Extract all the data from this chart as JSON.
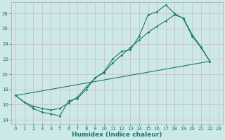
{
  "bg_color": "#cce8e8",
  "grid_color": "#d4b8b8",
  "line_color": "#1a7a6a",
  "xlabel": "Humidex (Indice chaleur)",
  "xlim": [
    -0.5,
    23.5
  ],
  "ylim": [
    13.5,
    29.5
  ],
  "xticks": [
    0,
    1,
    2,
    3,
    4,
    5,
    6,
    7,
    8,
    9,
    10,
    11,
    12,
    13,
    14,
    15,
    16,
    17,
    18,
    19,
    20,
    21,
    22,
    23
  ],
  "yticks": [
    14,
    16,
    18,
    20,
    22,
    24,
    26,
    28
  ],
  "curve1_x": [
    0,
    1,
    2,
    3,
    4,
    5,
    6,
    7,
    8,
    9,
    10,
    11,
    12,
    13,
    14,
    15,
    16,
    17,
    18,
    19,
    20,
    21,
    22
  ],
  "curve1_y": [
    17.2,
    16.3,
    15.5,
    15.0,
    14.8,
    14.5,
    16.5,
    16.8,
    18.0,
    19.5,
    20.3,
    22.0,
    23.0,
    23.2,
    25.0,
    27.8,
    28.2,
    29.1,
    28.0,
    27.3,
    25.0,
    23.5,
    21.7
  ],
  "curve2_x": [
    0,
    1,
    2,
    3,
    4,
    5,
    6,
    7,
    8,
    9,
    10,
    11,
    12,
    13,
    14,
    15,
    16,
    17,
    18,
    19,
    20,
    21,
    22
  ],
  "curve2_y": [
    17.2,
    16.3,
    15.8,
    15.5,
    15.3,
    15.5,
    16.2,
    17.0,
    18.3,
    19.5,
    20.2,
    21.5,
    22.5,
    23.5,
    24.5,
    25.5,
    26.3,
    27.0,
    27.8,
    27.4,
    25.2,
    23.6,
    21.7
  ],
  "curve3_x": [
    0,
    22
  ],
  "curve3_y": [
    17.2,
    21.7
  ]
}
